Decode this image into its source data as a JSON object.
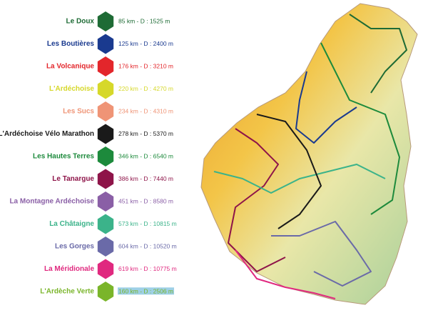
{
  "legend": {
    "routes": [
      {
        "name": "Le Doux",
        "color": "#1e6b35",
        "details": "85 km - D : 1525 m"
      },
      {
        "name": "Les Boutières",
        "color": "#1a3a8f",
        "details": "125 km - D : 2400 m"
      },
      {
        "name": "La Volcanique",
        "color": "#e3262b",
        "details": "176 km - D : 3210 m"
      },
      {
        "name": "L'Ardéchoise",
        "color": "#d6d82a",
        "details": "220 km - D : 4270 m"
      },
      {
        "name": "Les Sucs",
        "color": "#ef9476",
        "details": "234 km - D : 4310 m"
      },
      {
        "name": "L'Ardéchoise Vélo Marathon",
        "color": "#1a1a1a",
        "details": "278 km - D : 5370 m"
      },
      {
        "name": "Les Hautes Terres",
        "color": "#1d8a3c",
        "details": "346 km - D : 6540 m"
      },
      {
        "name": "Le Tanargue",
        "color": "#8e1449",
        "details": "386 km - D : 7440 m"
      },
      {
        "name": "La Montagne Ardéchoise",
        "color": "#8a5fa6",
        "details": "451 km - D : 8580 m"
      },
      {
        "name": "La Châtaigne",
        "color": "#3bb38a",
        "details": "573 km - D : 10815 m"
      },
      {
        "name": "Les Gorges",
        "color": "#6a6aa8",
        "details": "604 km - D : 10520 m"
      },
      {
        "name": "La Méridionale",
        "color": "#e0297f",
        "details": "619 km - D : 10775 m"
      },
      {
        "name": "L'Ardèche Verte",
        "color": "#7ab52a",
        "details": "160 km - D : 2506 m"
      }
    ]
  }
}
